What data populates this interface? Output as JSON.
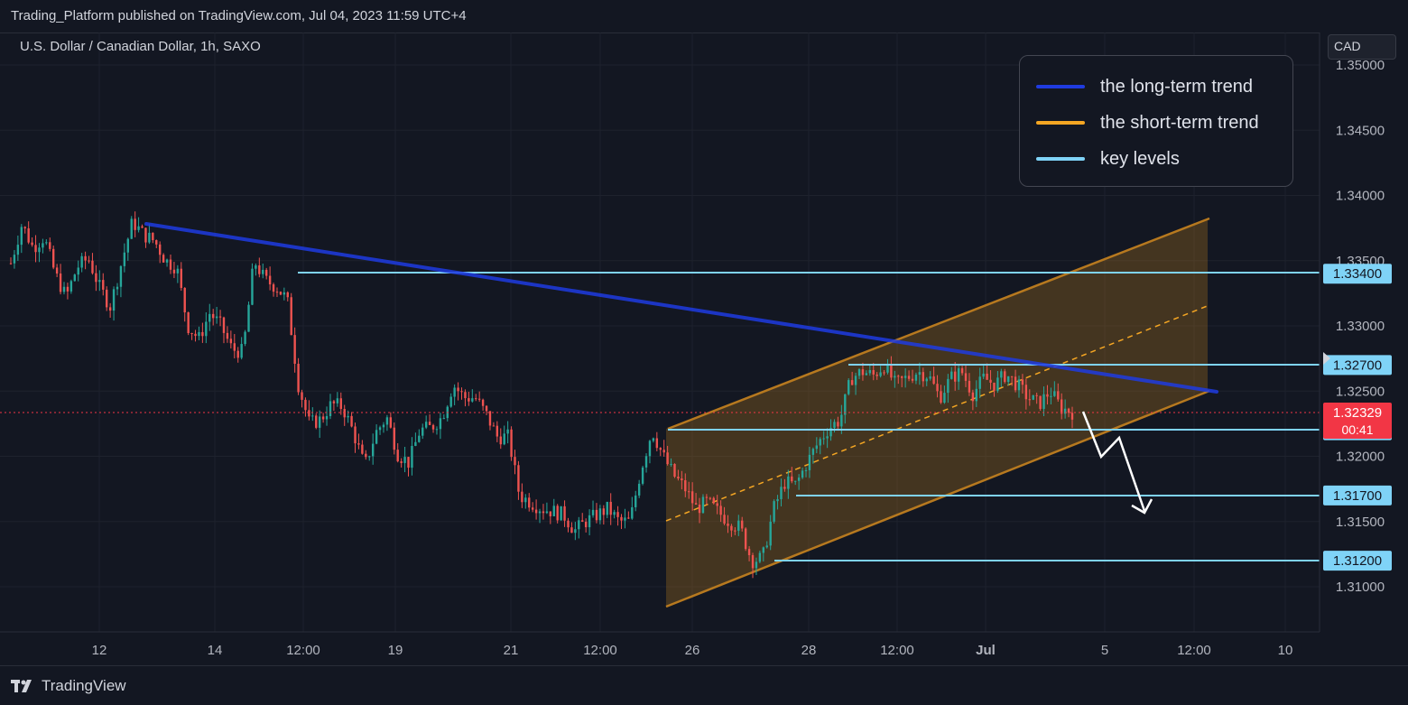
{
  "header": {
    "publish_line": "Trading_Platform published on TradingView.com, Jul 04, 2023 11:59 UTC+4"
  },
  "symbol_line": "U.S. Dollar / Canadian Dollar, 1h, SAXO",
  "currency_button": "CAD",
  "footer": {
    "brand": "TradingView"
  },
  "colors": {
    "background": "#131722",
    "grid": "#1e222d",
    "up_candle": "#26a69a",
    "down_candle": "#ef5350",
    "long_term_trend": "#1f3be0",
    "short_term_trend": "#f5a623",
    "key_levels": "#7fd3f7",
    "channel_border": "#b7791f",
    "current_price_tag": "#f23645"
  },
  "chart_data": {
    "type": "candlestick",
    "instrument": "USD/CAD",
    "timeframe": "1h",
    "x_ticks": [
      "12",
      "14",
      "12:00",
      "19",
      "21",
      "12:00",
      "26",
      "28",
      "12:00",
      "Jul",
      "5",
      "12:00",
      "10"
    ],
    "y_ticks": [
      "1.35000",
      "1.34500",
      "1.34000",
      "1.33500",
      "1.33000",
      "1.32500",
      "1.32000",
      "1.31500",
      "1.31000"
    ],
    "y_range": [
      1.3064,
      1.3524
    ],
    "key_levels": [
      "1.33400",
      "1.32700",
      "1.32200",
      "1.31700",
      "1.31200"
    ],
    "current_price": {
      "price": "1.32329",
      "countdown": "00:41"
    },
    "legend": [
      {
        "label": "the long-term trend",
        "color": "#1f3be0"
      },
      {
        "label": "the short-term trend",
        "color": "#f5a623"
      },
      {
        "label": "key levels",
        "color": "#7fd3f7"
      }
    ],
    "price_path": [
      1.3348,
      1.3378,
      1.336,
      1.3368,
      1.334,
      1.3322,
      1.3345,
      1.3352,
      1.333,
      1.3315,
      1.3348,
      1.338,
      1.337,
      1.3365,
      1.335,
      1.3345,
      1.33,
      1.329,
      1.331,
      1.33,
      1.3282,
      1.328,
      1.335,
      1.3335,
      1.333,
      1.332,
      1.3255,
      1.3225,
      1.3228,
      1.324,
      1.3238,
      1.3218,
      1.3192,
      1.3218,
      1.323,
      1.3202,
      1.3195,
      1.322,
      1.3222,
      1.323,
      1.3255,
      1.3245,
      1.3245,
      1.3232,
      1.3215,
      1.3215,
      1.317,
      1.3165,
      1.316,
      1.3158,
      1.3155,
      1.3143,
      1.315,
      1.3155,
      1.316,
      1.315,
      1.315,
      1.319,
      1.322,
      1.32,
      1.3185,
      1.3175,
      1.316,
      1.3165,
      1.3157,
      1.315,
      1.3145,
      1.312,
      1.3122,
      1.316,
      1.318,
      1.3178,
      1.3195,
      1.321,
      1.3222,
      1.3228,
      1.326,
      1.3265,
      1.3262,
      1.327,
      1.3255,
      1.326,
      1.3265,
      1.3262,
      1.3245,
      1.326,
      1.3265,
      1.3248,
      1.326,
      1.3255,
      1.3263,
      1.3255,
      1.3245,
      1.324,
      1.325,
      1.3237,
      1.3234
    ]
  }
}
